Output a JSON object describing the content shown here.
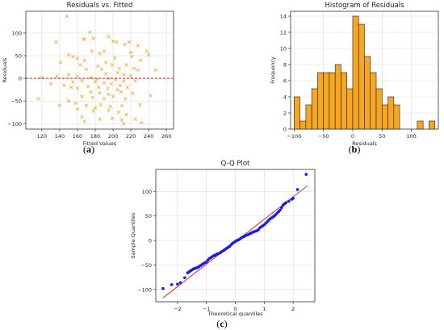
{
  "captions": {
    "a": "a",
    "b": "b",
    "c": "c"
  },
  "colors": {
    "orange": "#f5a623",
    "marker": "#f0a830",
    "red": "#ee1111",
    "blue": "#1a1aee",
    "grid": "#dddddd",
    "axis": "#333333"
  },
  "chart_data": [
    {
      "type": "scatter",
      "title": "Residuals vs. Fitted",
      "xlabel": "Fitted Values",
      "ylabel": "Residuals",
      "xlim": [
        102,
        268
      ],
      "ylim": [
        -112,
        148
      ],
      "xticks": [
        120,
        140,
        160,
        180,
        200,
        220,
        240,
        260
      ],
      "yticks": [
        -100,
        -50,
        0,
        50,
        100
      ],
      "grid": true,
      "marker": "x",
      "reference_line": {
        "y": 0,
        "style": "dashed",
        "color": "red"
      },
      "points": [
        [
          148,
          137
        ],
        [
          167,
          87
        ],
        [
          168,
          86
        ],
        [
          174,
          102
        ],
        [
          178,
          88
        ],
        [
          195,
          92
        ],
        [
          200,
          82
        ],
        [
          204,
          80
        ],
        [
          213,
          75
        ],
        [
          218,
          80
        ],
        [
          136,
          80
        ],
        [
          228,
          72
        ],
        [
          176,
          60
        ],
        [
          185,
          55
        ],
        [
          190,
          60
        ],
        [
          220,
          57
        ],
        [
          221,
          48
        ],
        [
          155,
          48
        ],
        [
          160,
          44
        ],
        [
          168,
          40
        ],
        [
          150,
          52
        ],
        [
          240,
          52
        ],
        [
          231,
          40
        ],
        [
          141,
          35
        ],
        [
          163,
          30
        ],
        [
          183,
          27
        ],
        [
          199,
          30
        ],
        [
          215,
          30
        ],
        [
          224,
          22
        ],
        [
          228,
          18
        ],
        [
          170,
          20
        ],
        [
          187,
          20
        ],
        [
          207,
          22
        ],
        [
          192,
          10
        ],
        [
          205,
          12
        ],
        [
          212,
          8
        ],
        [
          220,
          5
        ],
        [
          150,
          8
        ],
        [
          160,
          5
        ],
        [
          175,
          2
        ],
        [
          120,
          2
        ],
        [
          137,
          5
        ],
        [
          248,
          18
        ],
        [
          195,
          0
        ],
        [
          203,
          -3
        ],
        [
          212,
          -6
        ],
        [
          225,
          -5
        ],
        [
          165,
          -5
        ],
        [
          180,
          -8
        ],
        [
          190,
          -10
        ],
        [
          198,
          -12
        ],
        [
          208,
          -16
        ],
        [
          172,
          -18
        ],
        [
          184,
          -20
        ],
        [
          194,
          -22
        ],
        [
          205,
          -25
        ],
        [
          216,
          -20
        ],
        [
          153,
          -20
        ],
        [
          160,
          -22
        ],
        [
          145,
          -15
        ],
        [
          175,
          -30
        ],
        [
          185,
          -32
        ],
        [
          195,
          -35
        ],
        [
          209,
          -30
        ],
        [
          222,
          -33
        ],
        [
          165,
          -40
        ],
        [
          177,
          -42
        ],
        [
          190,
          -45
        ],
        [
          200,
          -40
        ],
        [
          214,
          -45
        ],
        [
          116,
          -45
        ],
        [
          150,
          -50
        ],
        [
          158,
          -55
        ],
        [
          140,
          -60
        ],
        [
          170,
          -60
        ],
        [
          186,
          -58
        ],
        [
          197,
          -62
        ],
        [
          210,
          -60
        ],
        [
          230,
          -58
        ],
        [
          242,
          -38
        ],
        [
          160,
          -68
        ],
        [
          178,
          -72
        ],
        [
          195,
          -70
        ],
        [
          206,
          -75
        ],
        [
          215,
          -80
        ],
        [
          165,
          -85
        ],
        [
          185,
          -90
        ],
        [
          199,
          -88
        ],
        [
          210,
          -92
        ],
        [
          225,
          -90
        ],
        [
          212,
          -100
        ],
        [
          232,
          -98
        ],
        [
          168,
          -95
        ],
        [
          180,
          -65
        ],
        [
          155,
          -8
        ],
        [
          130,
          -12
        ],
        [
          238,
          60
        ],
        [
          202,
          45
        ],
        [
          192,
          35
        ],
        [
          182,
          -2
        ]
      ]
    },
    {
      "type": "bar",
      "title": "Histogram of Residuals",
      "xlabel": "Residuals",
      "ylabel": "Frequency",
      "xlim": [
        -106,
        146
      ],
      "ylim": [
        0,
        14.6
      ],
      "xticks": [
        -100,
        -50,
        0,
        50,
        100
      ],
      "yticks": [
        0,
        2,
        4,
        6,
        8,
        10,
        12,
        14
      ],
      "grid": true,
      "bin_width": 10,
      "bins_start": [
        -100,
        -90,
        -80,
        -70,
        -60,
        -50,
        -40,
        -30,
        -20,
        -10,
        0,
        10,
        20,
        30,
        40,
        50,
        60,
        70,
        80,
        90,
        100,
        110,
        120,
        130
      ],
      "values": [
        4,
        1,
        3,
        5,
        7,
        7,
        7,
        8,
        7,
        5,
        14,
        13,
        9,
        7,
        5,
        3,
        4,
        3,
        0,
        0,
        0,
        1,
        0,
        1
      ]
    },
    {
      "type": "scatter",
      "title": "Q-Q Plot",
      "xlabel": "Theoretical quantiles",
      "ylabel": "Sample Quantiles",
      "xlim": [
        -2.75,
        2.75
      ],
      "ylim": [
        -125,
        145
      ],
      "xticks": [
        -2,
        -1,
        0,
        1,
        2
      ],
      "yticks": [
        -100,
        -50,
        0,
        50,
        100
      ],
      "grid": true,
      "reference_line": {
        "from": [
          -2.5,
          -117
        ],
        "to": [
          2.5,
          112
        ],
        "color": "red"
      },
      "points": [
        [
          -2.5,
          -98
        ],
        [
          -2.2,
          -90
        ],
        [
          -2.0,
          -89
        ],
        [
          -1.9,
          -86
        ],
        [
          -1.75,
          -76
        ],
        [
          -1.65,
          -66
        ],
        [
          -1.6,
          -64
        ],
        [
          -1.55,
          -62
        ],
        [
          -1.5,
          -60
        ],
        [
          -1.45,
          -58
        ],
        [
          -1.4,
          -57
        ],
        [
          -1.35,
          -56
        ],
        [
          -1.3,
          -55
        ],
        [
          -1.25,
          -53
        ],
        [
          -1.2,
          -51
        ],
        [
          -1.15,
          -49
        ],
        [
          -1.1,
          -47
        ],
        [
          -1.05,
          -45
        ],
        [
          -1.0,
          -44
        ],
        [
          -0.95,
          -40
        ],
        [
          -0.9,
          -37
        ],
        [
          -0.85,
          -35
        ],
        [
          -0.8,
          -33
        ],
        [
          -0.75,
          -31
        ],
        [
          -0.7,
          -30
        ],
        [
          -0.65,
          -28
        ],
        [
          -0.6,
          -27
        ],
        [
          -0.55,
          -26
        ],
        [
          -0.5,
          -24
        ],
        [
          -0.45,
          -22
        ],
        [
          -0.4,
          -20
        ],
        [
          -0.35,
          -18
        ],
        [
          -0.3,
          -16
        ],
        [
          -0.25,
          -14
        ],
        [
          -0.2,
          -12
        ],
        [
          -0.15,
          -9
        ],
        [
          -0.1,
          -6
        ],
        [
          -0.05,
          -4
        ],
        [
          0.0,
          -2
        ],
        [
          0.05,
          0
        ],
        [
          0.1,
          1
        ],
        [
          0.15,
          3
        ],
        [
          0.2,
          5
        ],
        [
          0.25,
          7
        ],
        [
          0.3,
          8
        ],
        [
          0.35,
          10
        ],
        [
          0.4,
          11
        ],
        [
          0.45,
          12
        ],
        [
          0.5,
          14
        ],
        [
          0.55,
          15
        ],
        [
          0.6,
          17
        ],
        [
          0.65,
          18
        ],
        [
          0.7,
          19
        ],
        [
          0.75,
          20
        ],
        [
          0.8,
          22
        ],
        [
          0.85,
          26
        ],
        [
          0.9,
          28
        ],
        [
          0.95,
          30
        ],
        [
          1.0,
          32
        ],
        [
          1.05,
          35
        ],
        [
          1.1,
          38
        ],
        [
          1.15,
          41
        ],
        [
          1.2,
          44
        ],
        [
          1.25,
          46
        ],
        [
          1.3,
          48
        ],
        [
          1.35,
          50
        ],
        [
          1.4,
          53
        ],
        [
          1.45,
          56
        ],
        [
          1.5,
          59
        ],
        [
          1.55,
          62
        ],
        [
          1.6,
          67
        ],
        [
          1.65,
          72
        ],
        [
          1.7,
          75
        ],
        [
          1.75,
          77
        ],
        [
          1.85,
          80
        ],
        [
          1.95,
          84
        ],
        [
          2.0,
          86
        ],
        [
          2.15,
          104
        ],
        [
          2.45,
          135
        ]
      ]
    }
  ]
}
